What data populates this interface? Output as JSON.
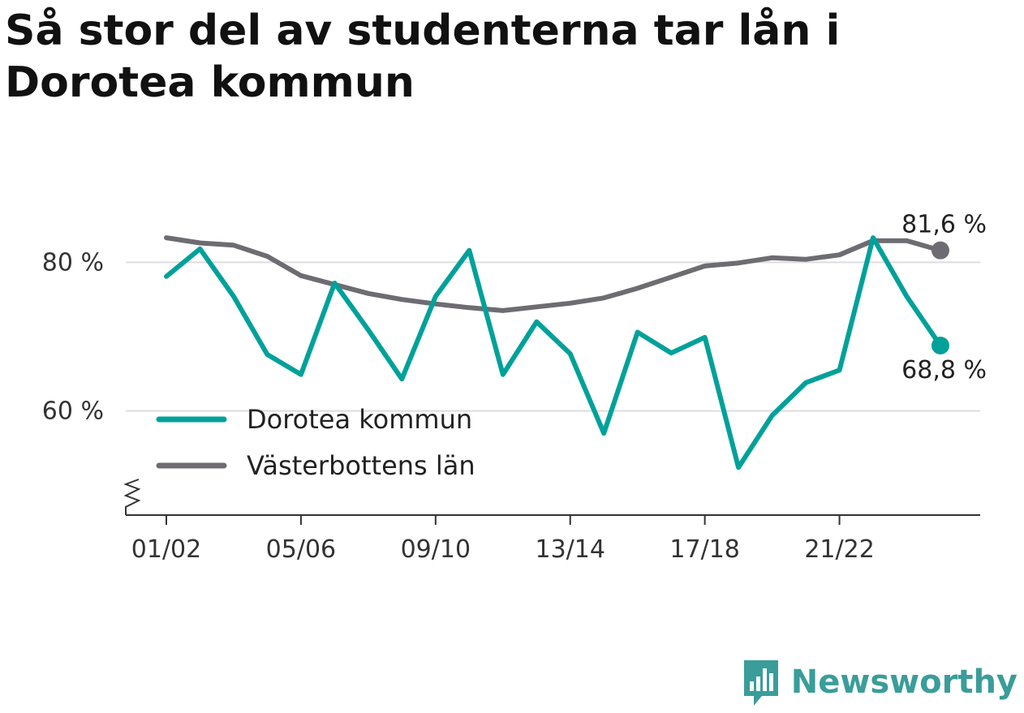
{
  "title": "Så stor del av studenterna tar lån i Dorotea kommun",
  "brand": {
    "name": "Newsworthy",
    "icon": "newsworthy-logo-icon",
    "color": "#3a9d9a"
  },
  "colors": {
    "dorotea": "#00a19a",
    "vasterbotten": "#6e6c72",
    "grid": "#dddddd",
    "axis": "#333333"
  },
  "chart_data": {
    "type": "line",
    "title": "Så stor del av studenterna tar lån i Dorotea kommun",
    "x": [
      "01/02",
      "02/03",
      "03/04",
      "04/05",
      "05/06",
      "06/07",
      "07/08",
      "08/09",
      "09/10",
      "10/11",
      "11/12",
      "12/13",
      "13/14",
      "14/15",
      "15/16",
      "16/17",
      "17/18",
      "18/19",
      "19/20",
      "20/21",
      "21/22",
      "22/23",
      "23/24",
      "24/25"
    ],
    "x_tick_labels": [
      "01/02",
      "05/06",
      "09/10",
      "13/14",
      "17/18",
      "21/22"
    ],
    "y_ticks": [
      60,
      80
    ],
    "y_tick_labels": [
      "60 %",
      "80 %"
    ],
    "ylim": [
      46,
      88
    ],
    "y_axis_broken": true,
    "grid": true,
    "legend_position": "bottom-left",
    "series": [
      {
        "name": "Dorotea kommun",
        "color": "#00a19a",
        "values": [
          78.1,
          81.8,
          75.4,
          67.6,
          64.9,
          77.2,
          70.9,
          64.3,
          75.4,
          81.6,
          64.9,
          72.0,
          67.7,
          57.0,
          70.6,
          67.8,
          69.9,
          52.4,
          59.4,
          63.8,
          65.5,
          83.3,
          75.4,
          68.8
        ],
        "end_label": "68,8 %"
      },
      {
        "name": "Västerbottens län",
        "color": "#6e6c72",
        "values": [
          83.3,
          82.6,
          82.3,
          80.8,
          78.2,
          77.0,
          75.8,
          75.0,
          74.4,
          73.9,
          73.5,
          74.0,
          74.5,
          75.2,
          76.5,
          78.0,
          79.5,
          79.9,
          80.6,
          80.4,
          81.0,
          82.9,
          82.9,
          81.6
        ],
        "end_label": "81,6 %"
      }
    ]
  }
}
